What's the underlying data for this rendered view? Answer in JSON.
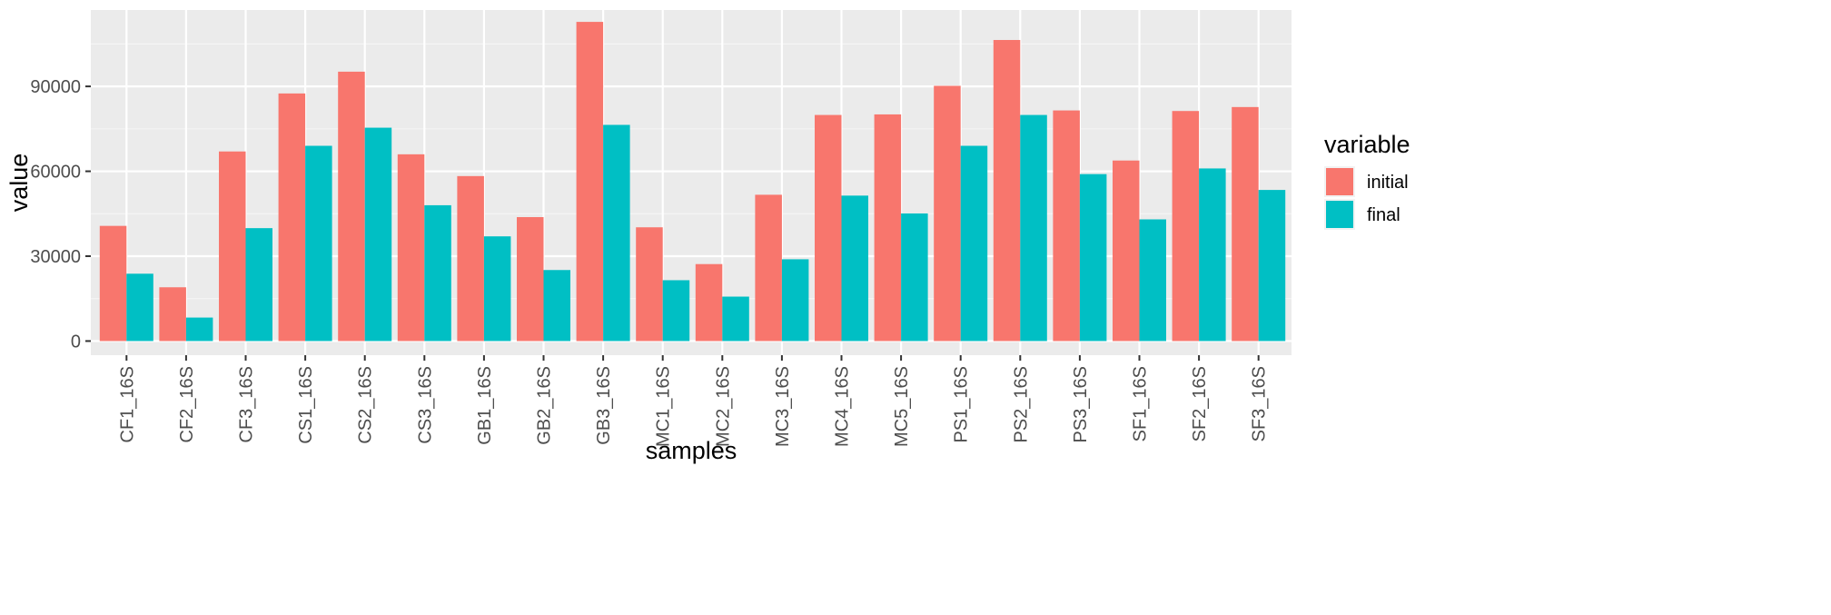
{
  "chart_data": {
    "type": "bar",
    "title": "",
    "xlabel": "samples",
    "ylabel": "value",
    "ylim": [
      -5000,
      117000
    ],
    "yticks": [
      0,
      30000,
      60000,
      90000
    ],
    "ytick_labels": [
      "0",
      "30000",
      "60000",
      "90000"
    ],
    "grid": true,
    "legend_position": "right",
    "legend_title": "variable",
    "categories": [
      "CF1_16S",
      "CF2_16S",
      "CF3_16S",
      "CS1_16S",
      "CS2_16S",
      "CS3_16S",
      "GB1_16S",
      "GB2_16S",
      "GB3_16S",
      "MC1_16S",
      "MC2_16S",
      "MC3_16S",
      "MC4_16S",
      "MC5_16S",
      "PS1_16S",
      "PS2_16S",
      "PS3_16S",
      "SF1_16S",
      "SF2_16S",
      "SF3_16S"
    ],
    "series": [
      {
        "name": "initial",
        "color": "#F8766D",
        "values": [
          40700,
          19000,
          67000,
          87500,
          95200,
          66000,
          58300,
          43800,
          112800,
          40200,
          27200,
          51700,
          79900,
          80100,
          90200,
          106400,
          81500,
          63800,
          81300,
          82700
        ]
      },
      {
        "name": "final",
        "color": "#00BFC4",
        "values": [
          23800,
          8300,
          39900,
          69000,
          75400,
          48000,
          37000,
          25100,
          76400,
          21500,
          15700,
          28900,
          51400,
          45100,
          69000,
          79900,
          59000,
          43000,
          61000,
          53400
        ]
      }
    ],
    "colors": {
      "panel": "#EBEBEB",
      "grid_major": "#FFFFFF",
      "grid_minor": "#F5F5F5"
    }
  }
}
